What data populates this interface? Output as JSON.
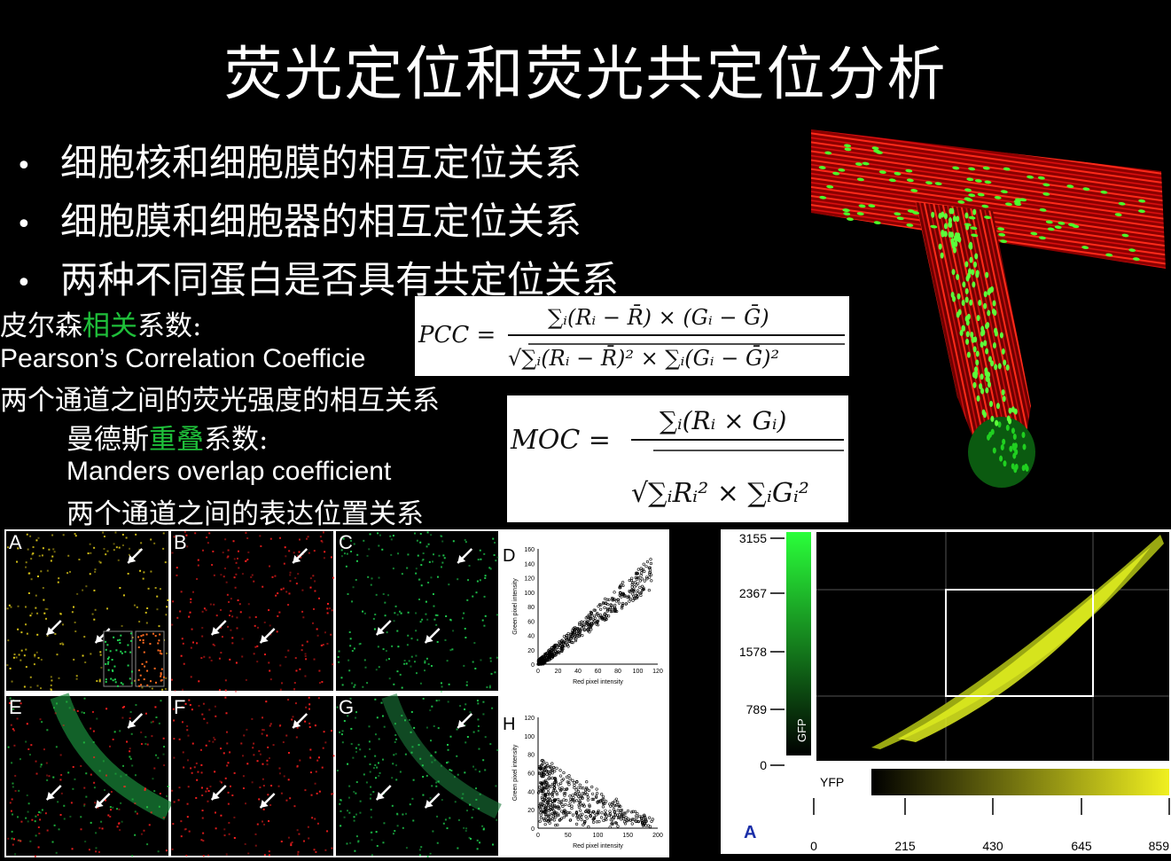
{
  "slide": {
    "title": "荧光定位和荧光共定位分析",
    "bullets": [
      "细胞核和细胞膜的相互定位关系",
      "细胞膜和细胞器的相互定位关系",
      "两种不同蛋白是否具有共定位关系"
    ],
    "bullet_symbol": "•",
    "pearson": {
      "prefix": "皮尔森",
      "highlight": "相关",
      "suffix": "系数:",
      "english": "Pearson’s Correlation Coefficie",
      "desc": "两个通道之间的荧光强度的相互关系"
    },
    "manders": {
      "prefix": "曼德斯",
      "highlight": "重叠",
      "suffix": "系数:",
      "english": "Manders overlap coefficient",
      "desc": "两个通道之间的表达位置关系"
    },
    "pcc_formula": {
      "lhs": "PCC ="
    },
    "moc_formula": {
      "lhs": "MOC ="
    },
    "highlight_color": "#1fbf3a"
  },
  "micrograph_panels": [
    "A",
    "B",
    "C",
    "D",
    "E",
    "F",
    "G",
    "H"
  ],
  "scatter_d": {
    "y_ticks": [
      "0",
      "20",
      "40",
      "60",
      "80",
      "100",
      "120",
      "140",
      "160"
    ],
    "x_ticks": [
      "0",
      "20",
      "40",
      "60",
      "80",
      "100",
      "120"
    ],
    "ylabel": "Green pixel intensity",
    "xlabel": "Red pixel intensity"
  },
  "scatter_h": {
    "y_ticks": [
      "0",
      "20",
      "40",
      "60",
      "80",
      "100",
      "120"
    ],
    "x_ticks": [
      "0",
      "50",
      "100",
      "150",
      "200"
    ],
    "ylabel": "Green pixel intensity",
    "xlabel": "Red pixel intensity"
  },
  "cytofluorogram": {
    "y_ticks": [
      "3155",
      "2367",
      "1578",
      "789",
      "0"
    ],
    "x_ticks": [
      "0",
      "215",
      "430",
      "645",
      "859"
    ],
    "y_channel": "GFP",
    "x_channel": "YFP",
    "panel_label": "A"
  }
}
